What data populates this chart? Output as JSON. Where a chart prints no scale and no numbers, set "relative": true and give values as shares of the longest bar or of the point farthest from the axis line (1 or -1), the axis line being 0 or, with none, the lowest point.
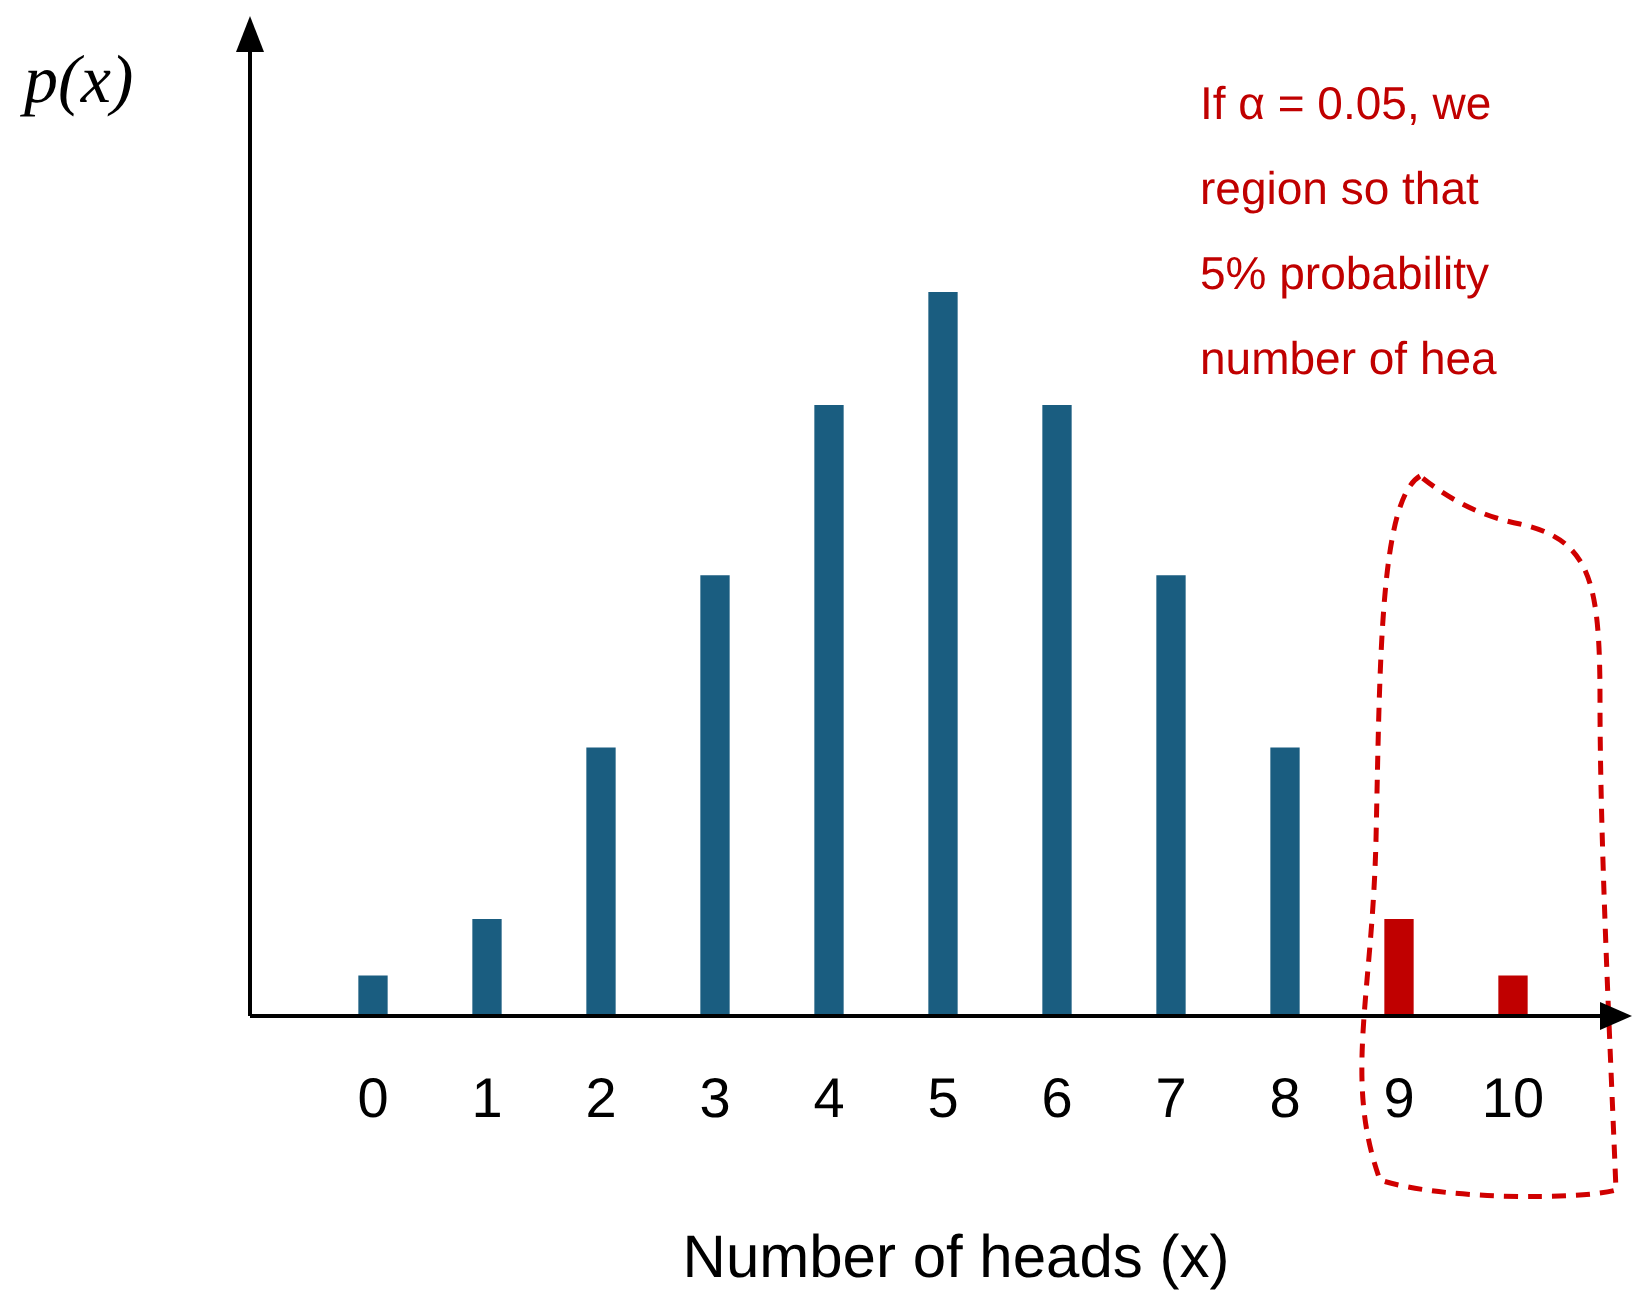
{
  "chart_data": {
    "type": "bar",
    "relative": true,
    "ylabel": "p(x)",
    "xlabel": "Number of heads (x)",
    "categories": [
      "0",
      "1",
      "2",
      "3",
      "4",
      "5",
      "6",
      "7",
      "8",
      "9",
      "10"
    ],
    "values": [
      0.055,
      0.133,
      0.37,
      0.608,
      0.843,
      1,
      0.843,
      0.608,
      0.37,
      0.133,
      0.055
    ],
    "colors": [
      "#1a5d80",
      "#1a5d80",
      "#1a5d80",
      "#1a5d80",
      "#1a5d80",
      "#1a5d80",
      "#1a5d80",
      "#1a5d80",
      "#1a5d80",
      "#c00000",
      "#c00000"
    ],
    "annotations": [
      "If α = 0.05, we",
      "region so that",
      "5% probability",
      "number of hea"
    ]
  }
}
